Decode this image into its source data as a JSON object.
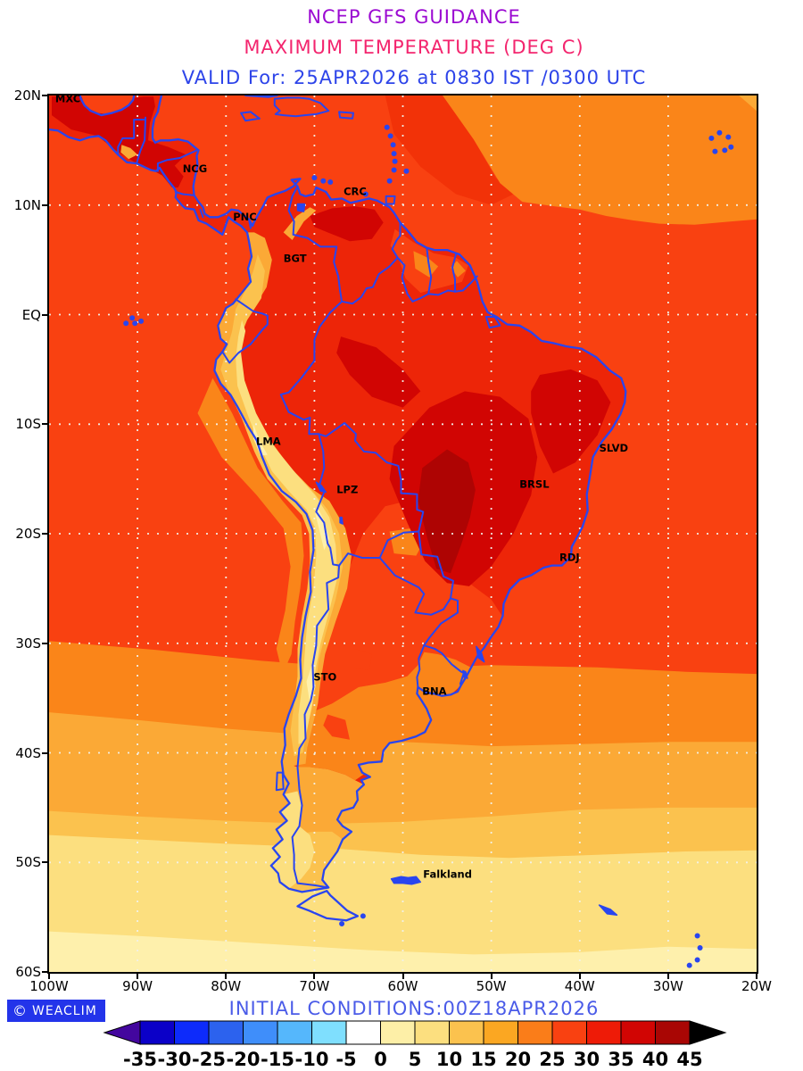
{
  "titles": {
    "line1": "NCEP GFS GUIDANCE",
    "line2": "MAXIMUM TEMPERATURE (DEG C)",
    "line3": "VALID For: 25APR2026 at 0830 IST /0300 UTC",
    "line1_color": "#9B09D2",
    "line2_color": "#F3256E",
    "line3_color": "#2D44E9"
  },
  "axes": {
    "lat_labels": [
      "20N",
      "10N",
      "EQ",
      "10S",
      "20S",
      "30S",
      "40S",
      "50S",
      "60S"
    ],
    "lon_labels": [
      "100W",
      "90W",
      "80W",
      "70W",
      "60W",
      "50W",
      "40W",
      "30W",
      "20W"
    ]
  },
  "map": {
    "cities": [
      {
        "label": "MXC",
        "lon": -99.3,
        "lat": 19.4
      },
      {
        "label": "NCG",
        "lon": -84.9,
        "lat": 13.0
      },
      {
        "label": "CRC",
        "lon": -66.7,
        "lat": 10.9
      },
      {
        "label": "PNC",
        "lon": -79.2,
        "lat": 8.6
      },
      {
        "label": "BGT",
        "lon": -73.5,
        "lat": 4.8
      },
      {
        "label": "LMA",
        "lon": -76.6,
        "lat": -11.9
      },
      {
        "label": "LPZ",
        "lon": -67.5,
        "lat": -16.3
      },
      {
        "label": "SLVD",
        "lon": -37.8,
        "lat": -12.5
      },
      {
        "label": "BRSL",
        "lon": -46.8,
        "lat": -15.8
      },
      {
        "label": "RDJ",
        "lon": -42.3,
        "lat": -22.5
      },
      {
        "label": "STO",
        "lon": -70.1,
        "lat": -33.4
      },
      {
        "label": "BNA",
        "lon": -57.8,
        "lat": -34.7
      },
      {
        "label": "Falkland",
        "lon": -57.7,
        "lat": -51.4
      }
    ],
    "colors": {
      "t0_5": "#FEF0AC",
      "t5_10": "#FCDF7F",
      "t10_15": "#FBC24E",
      "t15_20": "#FBA936",
      "t20_25": "#FA8519",
      "t25_30": "#F94111",
      "warm_mid": "#F23208",
      "t30_35": "#ED2508",
      "t35_40": "#D10503",
      "t40_45": "#AE0403",
      "border_blue": "#2945EF",
      "grid": "#F2F2EA",
      "frame": "#000000",
      "label": "#000000"
    }
  },
  "colorbar": {
    "tick_labels": [
      "-35",
      "-30",
      "-25",
      "-20",
      "-15",
      "-10",
      "-5",
      "0",
      "5",
      "10",
      "15",
      "20",
      "25",
      "30",
      "35",
      "40",
      "45"
    ],
    "left_arrow_color": "#43069E",
    "right_arrow_color": "#000000",
    "segment_colors": [
      "#0B00C8",
      "#0D2BFB",
      "#2C62EE",
      "#3F8EFA",
      "#55B7FC",
      "#7FDFFE",
      "#FFFFFF",
      "#FDEFA7",
      "#FCDF7F",
      "#FBC24E",
      "#FBA722",
      "#FA7D19",
      "#F94111",
      "#EE1B07",
      "#D10503",
      "#A90604"
    ]
  },
  "footer": {
    "logo_text": "WEACLIM",
    "logo_icon": "©",
    "logo_bg": "#2334EA",
    "initial_conditions": "INITIAL CONDITIONS:00Z18APR2026",
    "ic_color": "#4A5BE8"
  }
}
